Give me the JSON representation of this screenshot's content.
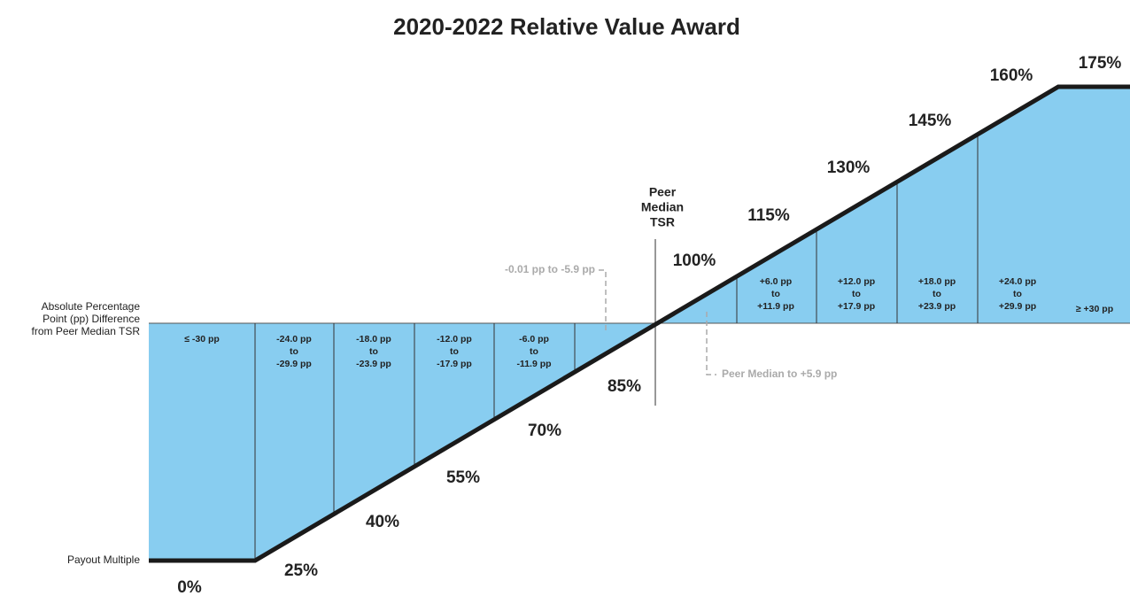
{
  "title": "2020-2022 Relative Value Award",
  "axis_labels": {
    "difference": [
      "Absolute Percentage",
      "Point (pp) Difference",
      "from Peer Median TSR"
    ],
    "payout": "Payout Multiple"
  },
  "peer_median": [
    "Peer",
    "Median",
    "TSR"
  ],
  "bands": [
    [
      "≤ -30 pp"
    ],
    [
      "-24.0 pp",
      "to",
      "-29.9 pp"
    ],
    [
      "-18.0 pp",
      "to",
      "-23.9 pp"
    ],
    [
      "-12.0 pp",
      "to",
      "-17.9 pp"
    ],
    [
      "-6.0 pp",
      "to",
      "-11.9 pp"
    ],
    [
      "+6.0 pp",
      "to",
      "+11.9 pp"
    ],
    [
      "+12.0 pp",
      "to",
      "+17.9 pp"
    ],
    [
      "+18.0 pp",
      "to",
      "+23.9 pp"
    ],
    [
      "+24.0 pp",
      "to",
      "+29.9 pp"
    ],
    [
      "≥ +30 pp"
    ]
  ],
  "payouts": [
    "0%",
    "25%",
    "40%",
    "55%",
    "70%",
    "85%",
    "100%",
    "115%",
    "130%",
    "145%",
    "160%",
    "175%"
  ],
  "annotations": [
    "-0.01 pp to -5.9 pp",
    "Peer Median to +5.9 pp"
  ]
}
